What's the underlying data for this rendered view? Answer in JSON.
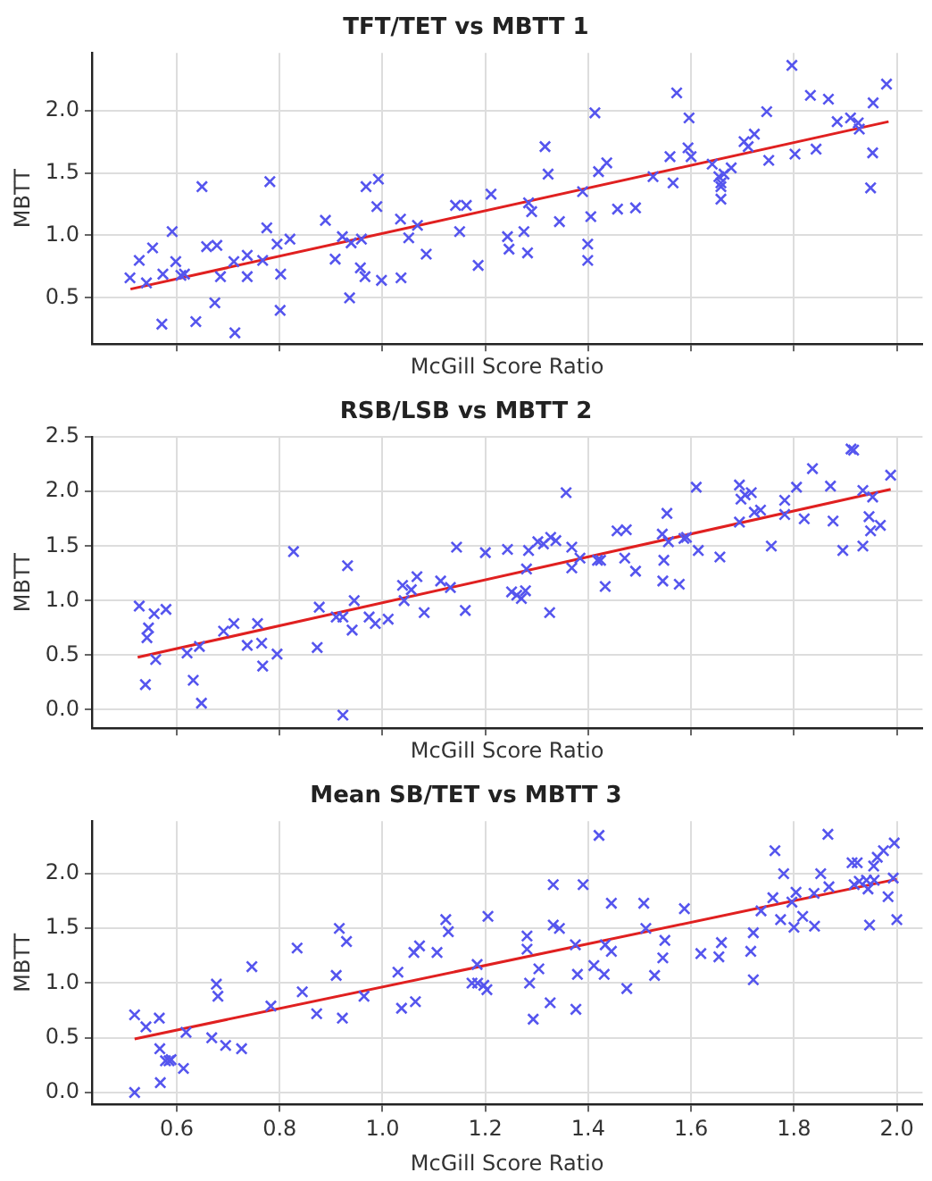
{
  "chart_data": [
    {
      "type": "scatter",
      "title": "TFT/TET vs MBTT 1",
      "xlabel": "McGill Score Ratio",
      "ylabel": "MBTT",
      "xlim": [
        0.435,
        2.05
      ],
      "xticks": [
        0.6,
        0.8,
        1,
        1.2,
        1.4,
        1.6,
        1.8,
        2
      ],
      "ylim": [
        0.13,
        2.46
      ],
      "yticks": [
        0.5,
        {
          "value": 1,
          "label": "1.0"
        },
        1.5,
        {
          "value": 2,
          "label": "2.0"
        }
      ],
      "grid": true,
      "tick_labels": "y",
      "marker": "cross",
      "legend": false,
      "series": [
        {
          "type": "scatter",
          "color": "#5555ee",
          "x": [
            0.509,
            0.527,
            0.541,
            0.553,
            0.571,
            0.573,
            0.591,
            0.598,
            0.608,
            0.615,
            0.637,
            0.649,
            0.658,
            0.674,
            0.678,
            0.685,
            0.713,
            0.711,
            0.737,
            0.737,
            0.767,
            0.775,
            0.781,
            0.795,
            0.802,
            0.801,
            0.82,
            0.889,
            0.908,
            0.922,
            0.936,
            0.939,
            0.957,
            0.959,
            0.966,
            0.968,
            0.989,
            0.992,
            0.998,
            1.035,
            1.036,
            1.051,
            1.068,
            1.085,
            1.142,
            1.15,
            1.163,
            1.186,
            1.211,
            1.243,
            1.246,
            1.275,
            1.282,
            1.284,
            1.29,
            1.316,
            1.322,
            1.344,
            1.389,
            1.399,
            1.399,
            1.405,
            1.413,
            1.42,
            1.436,
            1.457,
            1.492,
            1.526,
            1.559,
            1.565,
            1.572,
            1.596,
            1.594,
            1.6,
            1.641,
            1.654,
            1.658,
            1.658,
            1.658,
            1.664,
            1.678,
            1.703,
            1.711,
            1.723,
            1.747,
            1.751,
            1.796,
            1.802,
            1.832,
            1.843,
            1.867,
            1.884,
            1.91,
            1.925,
            1.927,
            1.949,
            1.953,
            1.954,
            1.98
          ],
          "values": [
            0.66,
            0.8,
            0.62,
            0.9,
            0.29,
            0.69,
            1.03,
            0.79,
            0.68,
            0.69,
            0.31,
            1.39,
            0.91,
            0.46,
            0.92,
            0.67,
            0.22,
            0.79,
            0.84,
            0.67,
            0.8,
            1.06,
            1.43,
            0.93,
            0.69,
            0.4,
            0.97,
            1.12,
            0.81,
            0.99,
            0.5,
            0.94,
            0.74,
            0.97,
            0.67,
            1.39,
            1.23,
            1.45,
            0.64,
            1.13,
            0.66,
            0.98,
            1.08,
            0.85,
            1.24,
            1.03,
            1.24,
            0.76,
            1.33,
            0.99,
            0.89,
            1.03,
            0.86,
            1.26,
            1.19,
            1.71,
            1.49,
            1.11,
            1.35,
            0.93,
            0.8,
            1.15,
            1.98,
            1.51,
            1.58,
            1.21,
            1.22,
            1.47,
            1.63,
            1.42,
            2.14,
            1.94,
            1.7,
            1.63,
            1.57,
            1.47,
            1.42,
            1.39,
            1.29,
            1.49,
            1.54,
            1.75,
            1.71,
            1.81,
            1.99,
            1.6,
            2.36,
            1.65,
            2.12,
            1.69,
            2.09,
            1.91,
            1.94,
            1.9,
            1.85,
            1.38,
            1.66,
            2.06,
            2.21
          ]
        },
        {
          "type": "line",
          "color": "#e02020",
          "marker": "none",
          "x": [
            0.51,
            1.984
          ],
          "values": [
            0.57,
            1.91
          ]
        }
      ]
    },
    {
      "type": "scatter",
      "title": "RSB/LSB vs MBTT 2",
      "xlabel": "McGill Score Ratio",
      "ylabel": "MBTT",
      "xlim": [
        0.435,
        2.05
      ],
      "xticks": [
        0.6,
        0.8,
        1,
        1.2,
        1.4,
        1.6,
        1.8,
        2
      ],
      "ylim": [
        -0.17,
        2.5
      ],
      "yticks": [
        {
          "value": 0,
          "label": "0.0"
        },
        0.5,
        {
          "value": 1,
          "label": "1.0"
        },
        1.5,
        {
          "value": 2,
          "label": "2.0"
        },
        2.5
      ],
      "grid": true,
      "tick_labels": "y",
      "marker": "cross",
      "legend": false,
      "series": [
        {
          "type": "scatter",
          "color": "#5555ee",
          "x": [
            0.527,
            0.542,
            0.545,
            0.539,
            0.556,
            0.559,
            0.579,
            0.62,
            0.632,
            0.644,
            0.648,
            0.691,
            0.711,
            0.737,
            0.757,
            0.765,
            0.767,
            0.795,
            0.827,
            0.873,
            0.877,
            0.91,
            0.923,
            0.923,
            0.932,
            0.941,
            0.945,
            0.974,
            0.986,
            1.011,
            1.039,
            1.042,
            1.056,
            1.067,
            1.081,
            1.113,
            1.132,
            1.144,
            1.161,
            1.2,
            1.243,
            1.251,
            1.261,
            1.27,
            1.278,
            1.28,
            1.284,
            1.302,
            1.313,
            1.325,
            1.327,
            1.337,
            1.357,
            1.368,
            1.368,
            1.384,
            1.418,
            1.424,
            1.433,
            1.456,
            1.474,
            1.471,
            1.492,
            1.544,
            1.547,
            1.545,
            1.553,
            1.556,
            1.577,
            1.586,
            1.591,
            1.61,
            1.614,
            1.656,
            1.694,
            1.697,
            1.694,
            1.705,
            1.717,
            1.723,
            1.735,
            1.756,
            1.782,
            1.782,
            1.805,
            1.82,
            1.836,
            1.871,
            1.876,
            1.895,
            1.911,
            1.916,
            1.934,
            1.934,
            1.946,
            1.949,
            1.953,
            1.968,
            1.988
          ],
          "values": [
            0.95,
            0.66,
            0.75,
            0.23,
            0.88,
            0.46,
            0.92,
            0.52,
            0.27,
            0.58,
            0.06,
            0.72,
            0.79,
            0.59,
            0.79,
            0.61,
            0.4,
            0.51,
            1.45,
            0.57,
            0.94,
            0.85,
            0.85,
            -0.05,
            1.32,
            0.73,
            1.0,
            0.85,
            0.79,
            0.83,
            1.14,
            1.0,
            1.1,
            1.22,
            0.89,
            1.18,
            1.12,
            1.49,
            0.91,
            1.44,
            1.47,
            1.08,
            1.05,
            1.02,
            1.09,
            1.29,
            1.46,
            1.54,
            1.52,
            0.89,
            1.58,
            1.55,
            1.99,
            1.49,
            1.3,
            1.39,
            1.37,
            1.37,
            1.13,
            1.64,
            1.65,
            1.39,
            1.27,
            1.61,
            1.37,
            1.18,
            1.8,
            1.54,
            1.15,
            1.57,
            1.58,
            2.04,
            1.46,
            1.4,
            2.06,
            1.93,
            1.72,
            1.97,
            1.99,
            1.81,
            1.83,
            1.5,
            1.92,
            1.79,
            2.04,
            1.75,
            2.21,
            2.05,
            1.73,
            1.46,
            2.39,
            2.38,
            2.01,
            1.5,
            1.77,
            1.64,
            1.95,
            1.69,
            2.15
          ]
        },
        {
          "type": "line",
          "color": "#e02020",
          "marker": "none",
          "x": [
            0.524,
            1.988
          ],
          "values": [
            0.48,
            2.02
          ]
        }
      ]
    },
    {
      "type": "scatter",
      "title": "Mean SB/TET vs MBTT 3",
      "xlabel": "McGill Score Ratio",
      "ylabel": "MBTT",
      "xlim": [
        0.435,
        2.05
      ],
      "xticks": [
        0.6,
        0.8,
        {
          "value": 1,
          "label": "1.0"
        },
        1.2,
        1.4,
        1.6,
        1.8,
        {
          "value": 2,
          "label": "2.0"
        }
      ],
      "ylim": [
        -0.11,
        2.48
      ],
      "yticks": [
        {
          "value": 0,
          "label": "0.0"
        },
        0.5,
        {
          "value": 1,
          "label": "1.0"
        },
        1.5,
        {
          "value": 2,
          "label": "2.0"
        }
      ],
      "grid": true,
      "marker": "cross",
      "legend": false,
      "series": [
        {
          "type": "scatter",
          "color": "#5555ee",
          "x": [
            0.518,
            0.54,
            0.518,
            0.566,
            0.567,
            0.568,
            0.578,
            0.585,
            0.589,
            0.613,
            0.618,
            0.668,
            0.677,
            0.68,
            0.695,
            0.726,
            0.746,
            0.783,
            0.834,
            0.844,
            0.872,
            0.916,
            0.91,
            0.922,
            0.93,
            0.964,
            1.03,
            1.037,
            1.064,
            1.061,
            1.072,
            1.106,
            1.123,
            1.128,
            1.174,
            1.184,
            1.185,
            1.197,
            1.203,
            1.205,
            1.281,
            1.281,
            1.286,
            1.293,
            1.304,
            1.326,
            1.332,
            1.332,
            1.344,
            1.375,
            1.376,
            1.379,
            1.39,
            1.411,
            1.421,
            1.433,
            1.431,
            1.445,
            1.445,
            1.475,
            1.508,
            1.512,
            1.529,
            1.545,
            1.549,
            1.587,
            1.619,
            1.654,
            1.659,
            1.716,
            1.721,
            1.721,
            1.736,
            1.759,
            1.763,
            1.774,
            1.78,
            1.796,
            1.8,
            1.804,
            1.817,
            1.839,
            1.84,
            1.852,
            1.866,
            1.868,
            1.913,
            1.923,
            1.917,
            1.927,
            1.941,
            1.944,
            1.947,
            1.955,
            1.956,
            1.962,
            1.974,
            1.983,
            1.995,
            1.993,
            2.0
          ],
          "values": [
            0.71,
            0.6,
            0.0,
            0.68,
            0.4,
            0.09,
            0.29,
            0.29,
            0.3,
            0.22,
            0.55,
            0.5,
            0.99,
            0.88,
            0.43,
            0.4,
            1.15,
            0.79,
            1.32,
            0.92,
            0.72,
            1.5,
            1.07,
            0.68,
            1.38,
            0.88,
            1.1,
            0.77,
            0.83,
            1.28,
            1.34,
            1.28,
            1.58,
            1.47,
            1.0,
            1.17,
            1.0,
            0.98,
            0.94,
            1.61,
            1.43,
            1.31,
            1.0,
            0.67,
            1.13,
            0.82,
            1.9,
            1.53,
            1.5,
            1.35,
            0.76,
            1.08,
            1.9,
            1.16,
            2.35,
            1.35,
            1.08,
            1.73,
            1.29,
            0.95,
            1.73,
            1.5,
            1.07,
            1.23,
            1.39,
            1.68,
            1.27,
            1.24,
            1.37,
            1.29,
            1.46,
            1.03,
            1.66,
            1.78,
            2.21,
            1.58,
            2.0,
            1.74,
            1.51,
            1.83,
            1.61,
            1.82,
            1.52,
            2.0,
            2.36,
            1.88,
            2.1,
            2.1,
            1.9,
            1.93,
            1.94,
            1.86,
            1.53,
            2.07,
            1.94,
            2.15,
            2.21,
            1.79,
            2.28,
            1.96,
            1.58
          ]
        },
        {
          "type": "line",
          "color": "#e02020",
          "marker": "none",
          "x": [
            0.518,
            2.0
          ],
          "values": [
            0.49,
            1.95
          ]
        }
      ]
    }
  ]
}
